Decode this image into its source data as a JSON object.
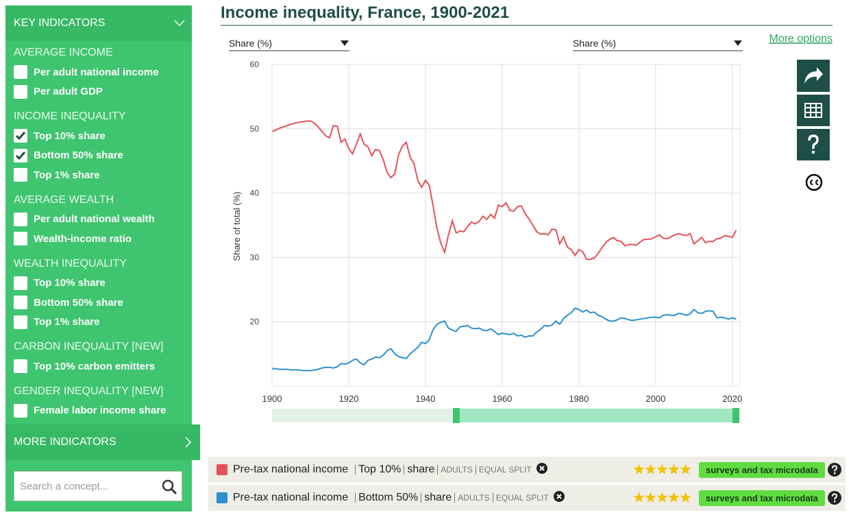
{
  "sidebar": {
    "header": "KEY INDICATORS",
    "groups": [
      {
        "title": "AVERAGE INCOME",
        "items": [
          {
            "label": "Per adult national income",
            "checked": false
          },
          {
            "label": "Per adult GDP",
            "checked": false
          }
        ]
      },
      {
        "title": "INCOME INEQUALITY",
        "items": [
          {
            "label": "Top 10% share",
            "checked": true
          },
          {
            "label": "Bottom 50% share",
            "checked": true
          },
          {
            "label": "Top 1% share",
            "checked": false
          }
        ]
      },
      {
        "title": "AVERAGE WEALTH",
        "items": [
          {
            "label": "Per adult national wealth",
            "checked": false
          },
          {
            "label": "Wealth-income ratio",
            "checked": false
          }
        ]
      },
      {
        "title": "WEALTH INEQUALITY",
        "items": [
          {
            "label": "Top 10% share",
            "checked": false
          },
          {
            "label": "Bottom 50% share",
            "checked": false
          },
          {
            "label": "Top 1% share",
            "checked": false
          }
        ]
      },
      {
        "title": "CARBON INEQUALITY [NEW]",
        "items": [
          {
            "label": "Top 10% carbon emitters",
            "checked": false
          }
        ]
      },
      {
        "title": "GENDER INEQUALITY [NEW]",
        "items": [
          {
            "label": "Female labor income share",
            "checked": false
          }
        ]
      }
    ],
    "more": "MORE INDICATORS",
    "search_placeholder": "Search a concept..."
  },
  "controls": {
    "left_select": "Share (%)",
    "right_select": "Share (%)",
    "more_options": "More options"
  },
  "chart_data": {
    "type": "line",
    "title": "Income inequality, France, 1900-2021",
    "y_axis_label": "Share of total (%)",
    "x": [
      1900,
      1901,
      1902,
      1903,
      1904,
      1905,
      1906,
      1907,
      1908,
      1909,
      1910,
      1911,
      1912,
      1913,
      1914,
      1915,
      1916,
      1917,
      1918,
      1919,
      1920,
      1921,
      1922,
      1923,
      1924,
      1925,
      1926,
      1927,
      1928,
      1929,
      1930,
      1931,
      1932,
      1933,
      1934,
      1935,
      1936,
      1937,
      1938,
      1939,
      1940,
      1941,
      1942,
      1943,
      1944,
      1945,
      1946,
      1947,
      1948,
      1949,
      1950,
      1951,
      1952,
      1953,
      1954,
      1955,
      1956,
      1957,
      1958,
      1959,
      1960,
      1961,
      1962,
      1963,
      1964,
      1965,
      1966,
      1967,
      1968,
      1969,
      1970,
      1971,
      1972,
      1973,
      1974,
      1975,
      1976,
      1977,
      1978,
      1979,
      1980,
      1981,
      1982,
      1983,
      1984,
      1985,
      1986,
      1987,
      1988,
      1989,
      1990,
      1991,
      1992,
      1993,
      1994,
      1995,
      1996,
      1997,
      1998,
      1999,
      2000,
      2001,
      2002,
      2003,
      2004,
      2005,
      2006,
      2007,
      2008,
      2009,
      2010,
      2011,
      2012,
      2013,
      2014,
      2015,
      2016,
      2017,
      2018,
      2019,
      2020,
      2021
    ],
    "xlim": [
      1900,
      2022
    ],
    "xticks": [
      1900,
      1920,
      1940,
      1960,
      1980,
      2000,
      2020
    ],
    "ylim": [
      10,
      60
    ],
    "yticks": [
      20,
      30,
      40,
      50,
      60
    ],
    "grid": true,
    "series": [
      {
        "name": "Pre-tax national income",
        "percentile": "Top 10%",
        "measure": "share",
        "population": "ADULTS",
        "split": "EQUAL SPLIT",
        "rating": 5,
        "source": "surveys and tax microdata",
        "color": "#e5505a",
        "values": [
          49.6,
          49.8,
          50.1,
          50.3,
          50.5,
          50.7,
          50.9,
          51.0,
          51.1,
          51.2,
          51.2,
          50.9,
          50.3,
          49.6,
          48.9,
          48.6,
          50.5,
          50.4,
          47.9,
          48.4,
          46.9,
          46.1,
          47.6,
          49.2,
          47.6,
          47.2,
          45.8,
          46.8,
          46.6,
          45.2,
          43.2,
          42.4,
          43.0,
          46.0,
          47.3,
          47.9,
          45.6,
          44.6,
          42.0,
          40.9,
          42.0,
          41.2,
          38.0,
          34.5,
          32.2,
          30.8,
          33.5,
          35.7,
          33.8,
          34.1,
          34.0,
          34.8,
          35.5,
          35.2,
          35.6,
          36.4,
          35.9,
          36.7,
          36.1,
          38.1,
          37.9,
          38.5,
          37.3,
          37.2,
          37.9,
          38.0,
          36.8,
          36.0,
          35.0,
          34.0,
          33.6,
          33.7,
          33.5,
          34.4,
          34.3,
          32.1,
          33.2,
          31.6,
          31.2,
          30.3,
          31.2,
          30.9,
          29.7,
          29.7,
          29.9,
          30.6,
          31.5,
          32.3,
          32.8,
          33.1,
          32.6,
          32.5,
          31.8,
          32.0,
          32.0,
          31.9,
          32.4,
          32.8,
          32.8,
          32.9,
          33.2,
          33.5,
          33.0,
          32.9,
          33.2,
          33.5,
          33.7,
          33.5,
          33.4,
          33.7,
          32.1,
          32.6,
          33.1,
          32.3,
          32.5,
          32.5,
          32.9,
          33.0,
          33.4,
          33.3,
          33.1,
          34.2
        ]
      },
      {
        "name": "Pre-tax national income",
        "percentile": "Bottom 50%",
        "measure": "share",
        "population": "ADULTS",
        "split": "EQUAL SPLIT",
        "rating": 5,
        "source": "surveys and tax microdata",
        "color": "#2b8fcf",
        "values": [
          12.7,
          12.7,
          12.6,
          12.6,
          12.6,
          12.5,
          12.5,
          12.5,
          12.4,
          12.4,
          12.4,
          12.5,
          12.6,
          12.8,
          12.9,
          12.9,
          12.8,
          13.0,
          13.5,
          13.4,
          13.6,
          14.0,
          14.2,
          13.6,
          13.3,
          14.0,
          14.2,
          14.5,
          14.4,
          14.8,
          15.5,
          15.8,
          15.0,
          14.6,
          14.4,
          14.3,
          15.0,
          15.5,
          16.0,
          16.8,
          16.6,
          17.2,
          18.8,
          19.6,
          19.9,
          20.1,
          19.0,
          18.7,
          18.5,
          19.2,
          19.3,
          19.4,
          19.0,
          18.9,
          19.0,
          18.7,
          18.6,
          18.9,
          18.5,
          18.0,
          18.2,
          18.1,
          18.0,
          18.2,
          17.8,
          17.9,
          17.6,
          17.8,
          17.8,
          18.4,
          18.8,
          19.4,
          19.3,
          19.5,
          20.1,
          19.6,
          20.5,
          21.0,
          21.4,
          22.1,
          21.9,
          21.5,
          21.8,
          21.4,
          21.5,
          21.0,
          20.8,
          20.4,
          20.1,
          20.1,
          20.3,
          20.6,
          20.5,
          20.3,
          20.2,
          20.3,
          20.4,
          20.5,
          20.6,
          20.7,
          20.7,
          20.6,
          21.0,
          21.1,
          21.0,
          21.0,
          21.3,
          21.2,
          21.0,
          21.2,
          21.9,
          21.4,
          21.3,
          21.6,
          21.7,
          21.6,
          20.6,
          20.7,
          20.6,
          20.4,
          20.6,
          20.4
        ]
      }
    ]
  }
}
